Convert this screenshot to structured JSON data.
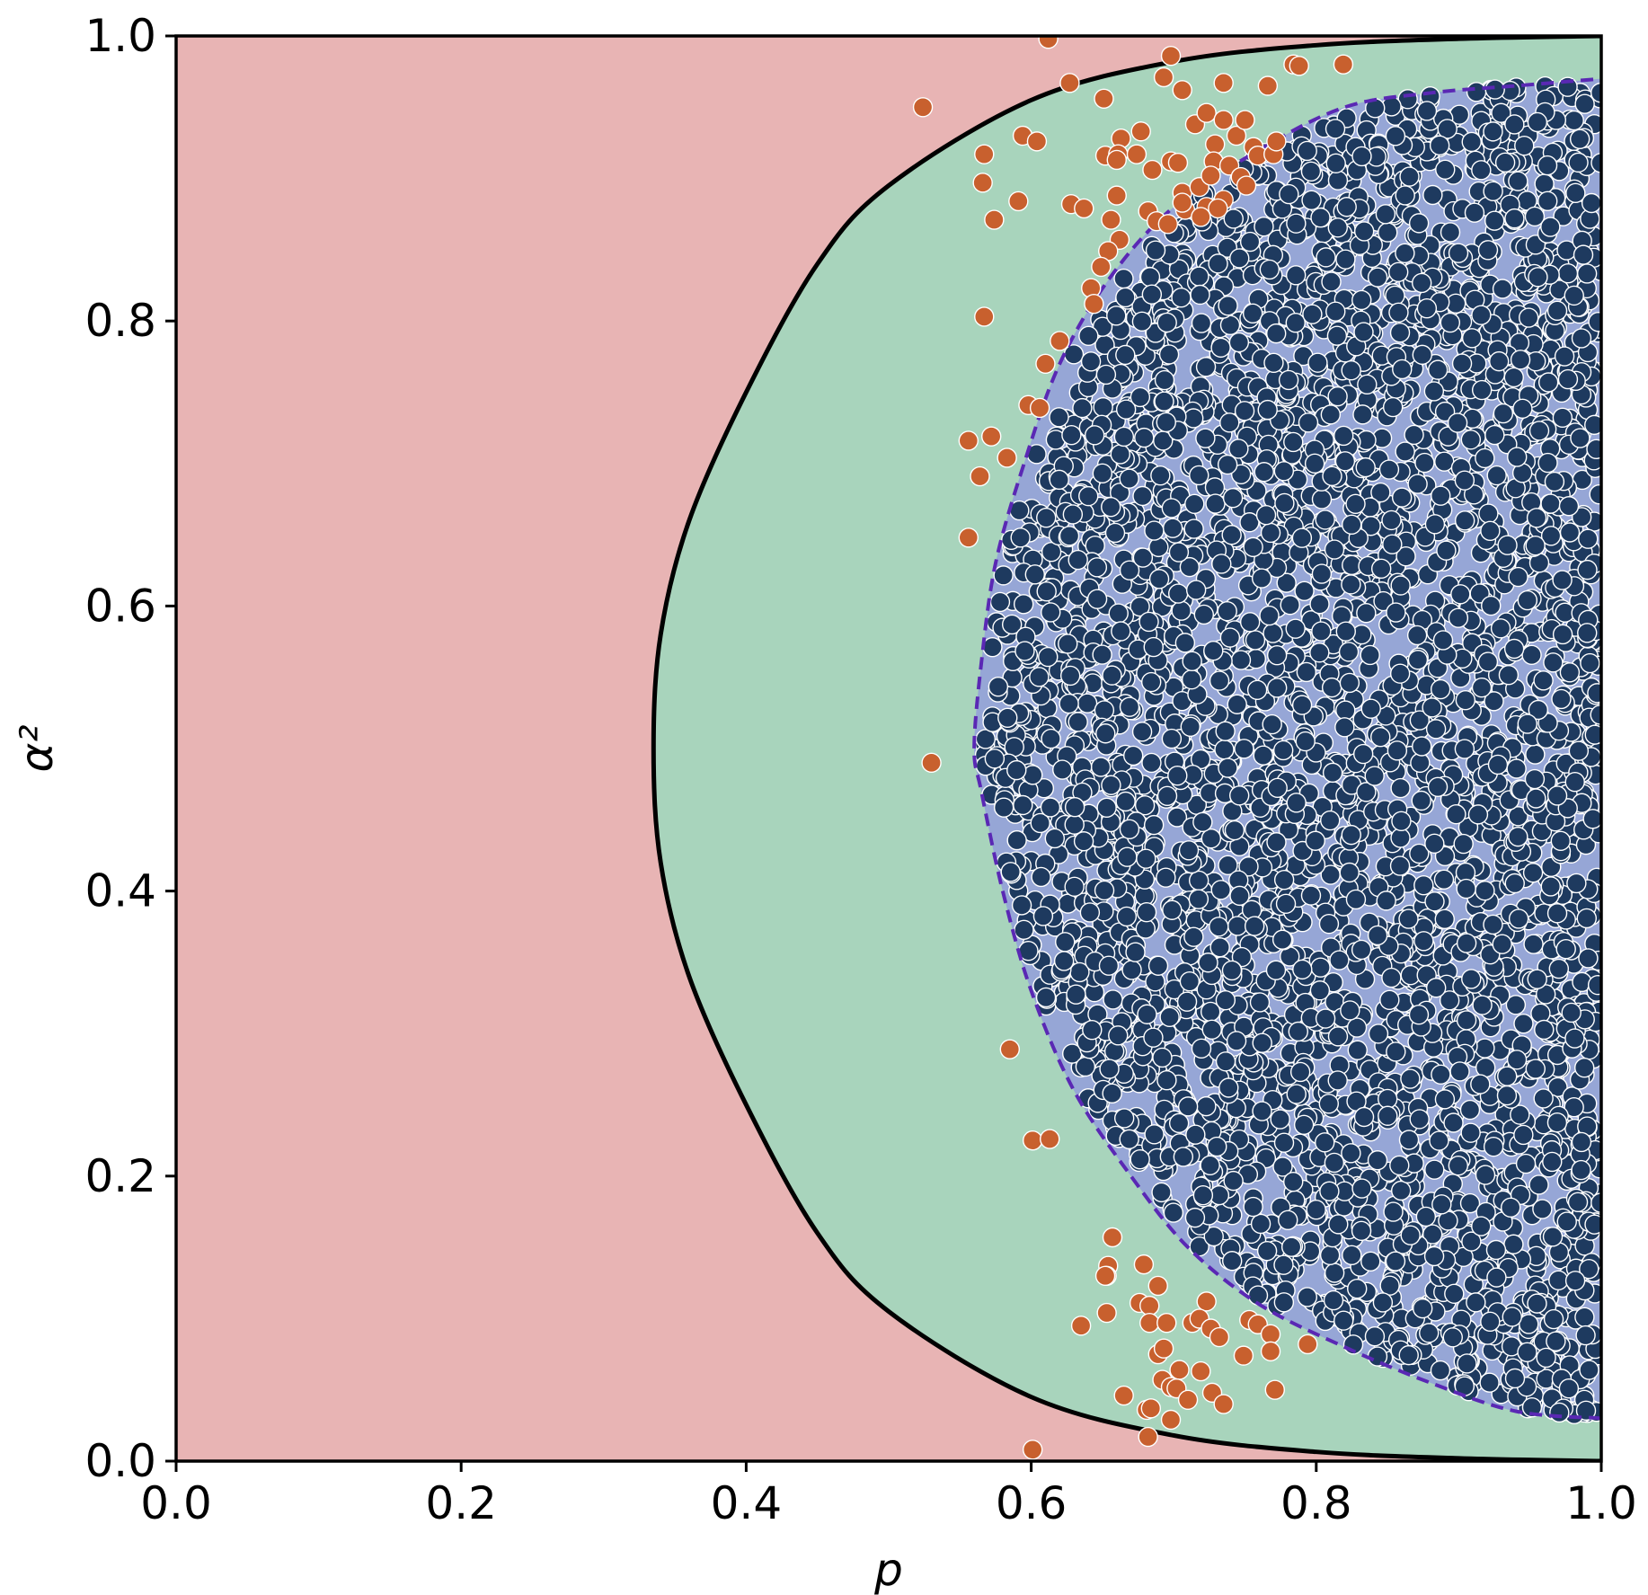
{
  "chart_data": {
    "type": "scatter",
    "title": "",
    "xlabel": "p",
    "ylabel": "α²",
    "xlim": [
      0.0,
      1.0
    ],
    "ylim": [
      0.0,
      1.0
    ],
    "x_ticks": [
      "0.0",
      "0.2",
      "0.4",
      "0.6",
      "0.8",
      "1.0"
    ],
    "y_ticks": [
      "0.0",
      "0.2",
      "0.4",
      "0.6",
      "0.8",
      "1.0"
    ],
    "grid": false,
    "legend": "none",
    "colors": {
      "region_outer": "#e8b4b4",
      "region_middle": "#a8d4bc",
      "region_inner": "#96a6d6",
      "inner_boundary": "#5a28b4",
      "outer_boundary": "#000000",
      "points_inside": "#1e3a5f",
      "points_outside": "#c8602e"
    },
    "outer_boundary": {
      "description_values": [
        [
          1.0,
          0.0
        ],
        [
          0.9,
          0.002
        ],
        [
          0.8,
          0.0065
        ],
        [
          0.7,
          0.018
        ],
        [
          0.6,
          0.045
        ],
        [
          0.5,
          0.105
        ],
        [
          0.45,
          0.16
        ],
        [
          0.4,
          0.25
        ],
        [
          0.36,
          0.34
        ],
        [
          0.34,
          0.42
        ],
        [
          0.335,
          0.5
        ],
        [
          0.34,
          0.58
        ],
        [
          0.36,
          0.66
        ],
        [
          0.4,
          0.75
        ],
        [
          0.45,
          0.84
        ],
        [
          0.5,
          0.895
        ],
        [
          0.6,
          0.955
        ],
        [
          0.7,
          0.982
        ],
        [
          0.8,
          0.9935
        ],
        [
          0.9,
          0.998
        ],
        [
          1.0,
          1.0
        ]
      ]
    },
    "inner_boundary": [
      [
        1.0,
        0.03
      ],
      [
        0.94,
        0.035
      ],
      [
        0.88,
        0.055
      ],
      [
        0.82,
        0.08
      ],
      [
        0.76,
        0.11
      ],
      [
        0.71,
        0.15
      ],
      [
        0.67,
        0.2
      ],
      [
        0.63,
        0.26
      ],
      [
        0.6,
        0.33
      ],
      [
        0.58,
        0.4
      ],
      [
        0.565,
        0.47
      ],
      [
        0.56,
        0.5
      ],
      [
        0.565,
        0.56
      ],
      [
        0.575,
        0.63
      ],
      [
        0.595,
        0.7
      ],
      [
        0.62,
        0.77
      ],
      [
        0.655,
        0.83
      ],
      [
        0.7,
        0.88
      ],
      [
        0.76,
        0.92
      ],
      [
        0.82,
        0.95
      ],
      [
        0.88,
        0.96
      ],
      [
        0.94,
        0.965
      ],
      [
        1.0,
        0.97
      ]
    ],
    "series": [
      {
        "values": [
          [
            0.612,
            0.998
          ],
          [
            0.524,
            0.95
          ],
          [
            0.567,
            0.917
          ],
          [
            0.566,
            0.897
          ],
          [
            0.574,
            0.871
          ],
          [
            0.594,
            0.93
          ],
          [
            0.604,
            0.926
          ],
          [
            0.591,
            0.884
          ],
          [
            0.627,
            0.967
          ],
          [
            0.628,
            0.882
          ],
          [
            0.637,
            0.879
          ],
          [
            0.651,
            0.956
          ],
          [
            0.663,
            0.928
          ],
          [
            0.677,
            0.933
          ],
          [
            0.698,
            0.986
          ],
          [
            0.706,
            0.962
          ],
          [
            0.735,
            0.967
          ],
          [
            0.766,
            0.965
          ],
          [
            0.784,
            0.98
          ],
          [
            0.788,
            0.979
          ],
          [
            0.819,
            0.98
          ],
          [
            0.693,
            0.971
          ],
          [
            0.652,
            0.916
          ],
          [
            0.661,
            0.917
          ],
          [
            0.66,
            0.913
          ],
          [
            0.674,
            0.917
          ],
          [
            0.685,
            0.906
          ],
          [
            0.698,
            0.912
          ],
          [
            0.703,
            0.911
          ],
          [
            0.715,
            0.938
          ],
          [
            0.723,
            0.946
          ],
          [
            0.735,
            0.941
          ],
          [
            0.744,
            0.93
          ],
          [
            0.75,
            0.941
          ],
          [
            0.729,
            0.924
          ],
          [
            0.728,
            0.912
          ],
          [
            0.739,
            0.909
          ],
          [
            0.756,
            0.922
          ],
          [
            0.759,
            0.916
          ],
          [
            0.77,
            0.917
          ],
          [
            0.772,
            0.926
          ],
          [
            0.706,
            0.89
          ],
          [
            0.718,
            0.894
          ],
          [
            0.726,
            0.902
          ],
          [
            0.723,
            0.88
          ],
          [
            0.735,
            0.885
          ],
          [
            0.747,
            0.901
          ],
          [
            0.751,
            0.895
          ],
          [
            0.708,
            0.878
          ],
          [
            0.706,
            0.883
          ],
          [
            0.719,
            0.873
          ],
          [
            0.731,
            0.879
          ],
          [
            0.682,
            0.877
          ],
          [
            0.688,
            0.87
          ],
          [
            0.696,
            0.868
          ],
          [
            0.66,
            0.888
          ],
          [
            0.656,
            0.871
          ],
          [
            0.662,
            0.857
          ],
          [
            0.654,
            0.849
          ],
          [
            0.649,
            0.838
          ],
          [
            0.642,
            0.823
          ],
          [
            0.644,
            0.812
          ],
          [
            0.62,
            0.786
          ],
          [
            0.61,
            0.77
          ],
          [
            0.567,
            0.803
          ],
          [
            0.598,
            0.741
          ],
          [
            0.606,
            0.739
          ],
          [
            0.572,
            0.719
          ],
          [
            0.556,
            0.716
          ],
          [
            0.583,
            0.704
          ],
          [
            0.564,
            0.691
          ],
          [
            0.556,
            0.648
          ],
          [
            0.53,
            0.49
          ],
          [
            0.585,
            0.289
          ],
          [
            0.601,
            0.225
          ],
          [
            0.613,
            0.226
          ],
          [
            0.657,
            0.157
          ],
          [
            0.654,
            0.137
          ],
          [
            0.653,
            0.13
          ],
          [
            0.679,
            0.138
          ],
          [
            0.689,
            0.123
          ],
          [
            0.652,
            0.13
          ],
          [
            0.676,
            0.111
          ],
          [
            0.683,
            0.109
          ],
          [
            0.635,
            0.095
          ],
          [
            0.653,
            0.104
          ],
          [
            0.683,
            0.097
          ],
          [
            0.695,
            0.097
          ],
          [
            0.713,
            0.097
          ],
          [
            0.723,
            0.112
          ],
          [
            0.718,
            0.1
          ],
          [
            0.726,
            0.093
          ],
          [
            0.753,
            0.099
          ],
          [
            0.759,
            0.096
          ],
          [
            0.768,
            0.089
          ],
          [
            0.794,
            0.082
          ],
          [
            0.689,
            0.075
          ],
          [
            0.693,
            0.079
          ],
          [
            0.704,
            0.064
          ],
          [
            0.719,
            0.063
          ],
          [
            0.732,
            0.087
          ],
          [
            0.749,
            0.074
          ],
          [
            0.768,
            0.077
          ],
          [
            0.692,
            0.057
          ],
          [
            0.698,
            0.052
          ],
          [
            0.702,
            0.051
          ],
          [
            0.71,
            0.043
          ],
          [
            0.727,
            0.048
          ],
          [
            0.735,
            0.04
          ],
          [
            0.665,
            0.046
          ],
          [
            0.681,
            0.036
          ],
          [
            0.684,
            0.037
          ],
          [
            0.698,
            0.029
          ],
          [
            0.771,
            0.05
          ],
          [
            0.682,
            0.017
          ],
          [
            0.601,
            0.008
          ]
        ]
      }
    ]
  }
}
